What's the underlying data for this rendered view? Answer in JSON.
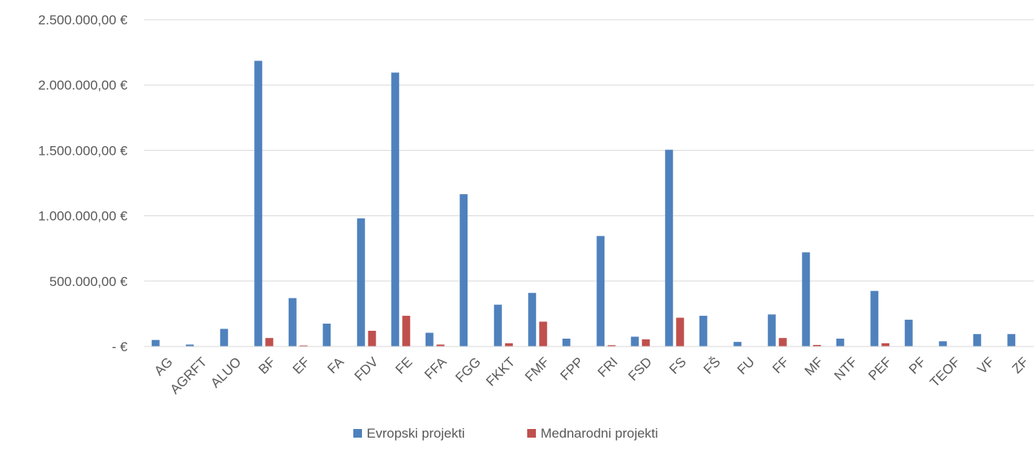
{
  "chart_data": {
    "type": "bar",
    "title": "",
    "xlabel": "",
    "ylabel": "",
    "ylim": [
      0,
      2500000
    ],
    "y_ticks": [
      {
        "value": 0,
        "label": "-   €"
      },
      {
        "value": 500000,
        "label": "500.000,00 €"
      },
      {
        "value": 1000000,
        "label": "1.000.000,00 €"
      },
      {
        "value": 1500000,
        "label": "1.500.000,00 €"
      },
      {
        "value": 2000000,
        "label": "2.000.000,00 €"
      },
      {
        "value": 2500000,
        "label": "2.500.000,00 €"
      }
    ],
    "grid": true,
    "legend_position": "bottom",
    "categories": [
      "AG",
      "AGRFT",
      "ALUO",
      "BF",
      "EF",
      "FA",
      "FDV",
      "FE",
      "FFA",
      "FGG",
      "FKKT",
      "FMF",
      "FPP",
      "FRI",
      "FSD",
      "FS",
      "FŠ",
      "FU",
      "FF",
      "MF",
      "NTF",
      "PEF",
      "PF",
      "TEOF",
      "VF",
      "ZF"
    ],
    "series": [
      {
        "name": "Evropski projekti",
        "color": "#4f81bd",
        "values": [
          50000,
          15000,
          135000,
          2185000,
          370000,
          175000,
          980000,
          2095000,
          105000,
          1165000,
          320000,
          410000,
          60000,
          845000,
          75000,
          1505000,
          235000,
          35000,
          245000,
          720000,
          60000,
          425000,
          205000,
          40000,
          95000,
          95000
        ]
      },
      {
        "name": "Mednarodni projekti",
        "color": "#c0504d",
        "values": [
          0,
          0,
          0,
          65000,
          8000,
          0,
          120000,
          235000,
          15000,
          0,
          25000,
          190000,
          0,
          10000,
          55000,
          220000,
          0,
          0,
          65000,
          12000,
          0,
          25000,
          0,
          0,
          0,
          0
        ]
      }
    ]
  }
}
